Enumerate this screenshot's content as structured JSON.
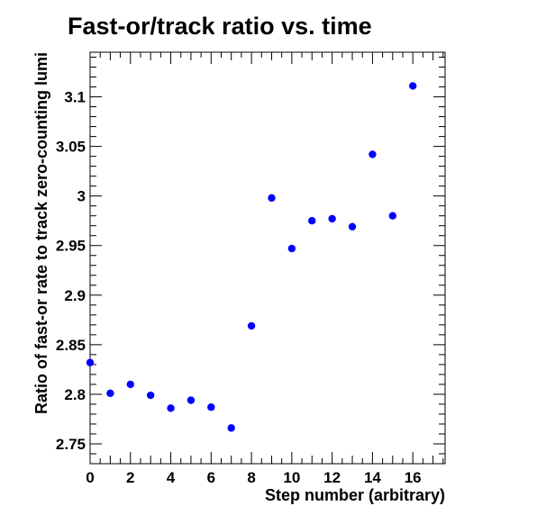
{
  "chart_data": {
    "type": "scatter",
    "title": "Fast-or/track ratio vs. time",
    "xlabel": "Step number (arbitrary)",
    "ylabel": "Ratio of fast-or rate to track zero-counting lumi",
    "xlim": [
      0,
      17.6
    ],
    "ylim": [
      2.73,
      3.145
    ],
    "x_ticks": [
      "0",
      "2",
      "4",
      "6",
      "8",
      "10",
      "12",
      "14",
      "16"
    ],
    "y_ticks": [
      "2.75",
      "2.8",
      "2.85",
      "2.9",
      "2.95",
      "3",
      "3.05",
      "3.1"
    ],
    "grid": false,
    "marker_color": "#0000ff",
    "series": [
      {
        "x": [
          0,
          1,
          2,
          3,
          4,
          5,
          6,
          7,
          8,
          9,
          10,
          11,
          12,
          13,
          14,
          15,
          16
        ],
        "y": [
          2.832,
          2.801,
          2.81,
          2.799,
          2.786,
          2.794,
          2.787,
          2.766,
          2.869,
          2.998,
          2.947,
          2.975,
          2.977,
          2.969,
          3.042,
          2.98,
          3.111
        ]
      }
    ]
  }
}
